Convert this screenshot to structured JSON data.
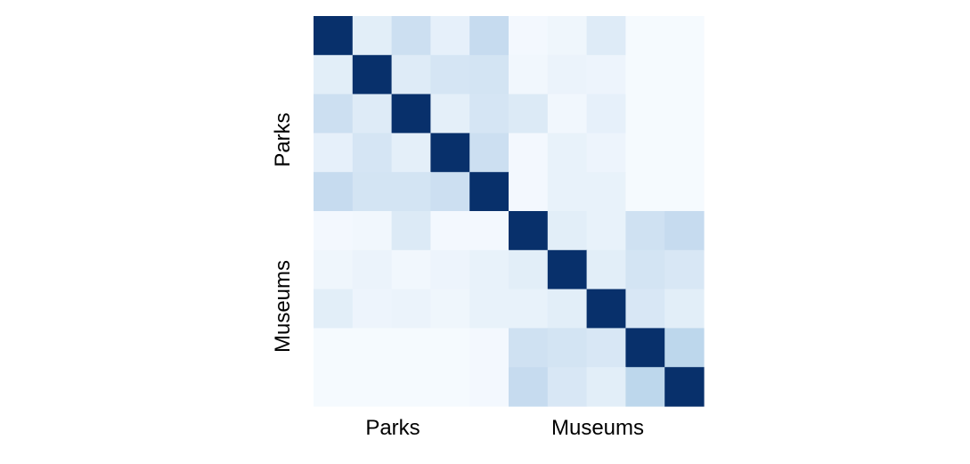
{
  "chart_data": {
    "type": "heatmap",
    "title": "",
    "x_groups": [
      "Parks",
      "Museums"
    ],
    "y_groups": [
      "Parks",
      "Museums"
    ],
    "group_sizes": [
      5,
      5
    ],
    "colormap": "Blues",
    "color_low": "#f7fbff",
    "color_high": "#08306b",
    "vmin": 0,
    "vmax": 1,
    "grid": false,
    "colorbar": false,
    "matrix": [
      [
        1.0,
        0.1,
        0.22,
        0.08,
        0.25,
        0.02,
        0.04,
        0.12,
        0.01,
        0.01
      ],
      [
        0.1,
        1.0,
        0.12,
        0.17,
        0.18,
        0.03,
        0.06,
        0.05,
        0.01,
        0.01
      ],
      [
        0.22,
        0.12,
        1.0,
        0.09,
        0.17,
        0.13,
        0.03,
        0.08,
        0.01,
        0.01
      ],
      [
        0.08,
        0.17,
        0.09,
        1.0,
        0.22,
        0.02,
        0.07,
        0.05,
        0.01,
        0.01
      ],
      [
        0.25,
        0.18,
        0.18,
        0.22,
        1.0,
        0.02,
        0.07,
        0.07,
        0.01,
        0.01
      ],
      [
        0.02,
        0.03,
        0.13,
        0.02,
        0.02,
        1.0,
        0.1,
        0.07,
        0.2,
        0.25
      ],
      [
        0.04,
        0.06,
        0.03,
        0.05,
        0.07,
        0.1,
        1.0,
        0.1,
        0.18,
        0.15
      ],
      [
        0.1,
        0.05,
        0.06,
        0.04,
        0.07,
        0.07,
        0.1,
        1.0,
        0.15,
        0.1
      ],
      [
        0.01,
        0.01,
        0.01,
        0.01,
        0.02,
        0.2,
        0.18,
        0.15,
        1.0,
        0.28
      ],
      [
        0.01,
        0.01,
        0.01,
        0.01,
        0.02,
        0.25,
        0.15,
        0.1,
        0.28,
        1.0
      ]
    ]
  }
}
